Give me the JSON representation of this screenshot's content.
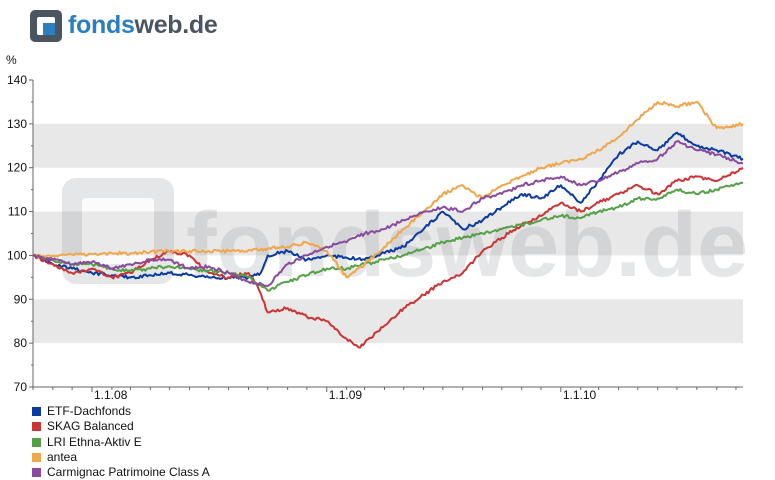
{
  "brand": {
    "part1": "fonds",
    "part2": "web.de",
    "watermark": "fondsweb.de"
  },
  "colors": {
    "band": "#e8e8e8",
    "axis": "#666666"
  },
  "chart_data": {
    "type": "line",
    "ylabel": "%",
    "ylim": [
      70,
      140
    ],
    "yticks": [
      70,
      80,
      90,
      100,
      110,
      120,
      130,
      140
    ],
    "grid": "alternating horizontal bands",
    "xlim": [
      "2007-10-01",
      "2010-10-12"
    ],
    "xticks": [
      {
        "date": "2008-01-01",
        "label": "1.1.08"
      },
      {
        "date": "2009-01-01",
        "label": "1.1.09"
      },
      {
        "date": "2010-01-01",
        "label": "1.1.10"
      }
    ],
    "legend_position": "bottom-left",
    "series": [
      {
        "name": "ETF-Dachfonds",
        "color": "#0b3aa0",
        "points": [
          [
            "2007-10-01",
            100
          ],
          [
            "2007-11-01",
            98
          ],
          [
            "2007-12-01",
            97
          ],
          [
            "2008-01-01",
            96
          ],
          [
            "2008-02-01",
            95.5
          ],
          [
            "2008-03-01",
            95
          ],
          [
            "2008-04-01",
            95.5
          ],
          [
            "2008-05-01",
            96
          ],
          [
            "2008-06-01",
            95.5
          ],
          [
            "2008-07-01",
            95
          ],
          [
            "2008-08-01",
            95
          ],
          [
            "2008-09-01",
            95
          ],
          [
            "2008-09-20",
            96
          ],
          [
            "2008-10-01",
            100
          ],
          [
            "2008-11-01",
            101
          ],
          [
            "2008-12-01",
            99
          ],
          [
            "2009-01-01",
            100
          ],
          [
            "2009-02-01",
            99.5
          ],
          [
            "2009-03-01",
            99
          ],
          [
            "2009-04-01",
            100.5
          ],
          [
            "2009-05-01",
            102
          ],
          [
            "2009-06-01",
            106
          ],
          [
            "2009-07-01",
            110
          ],
          [
            "2009-08-01",
            106
          ],
          [
            "2009-09-01",
            108
          ],
          [
            "2009-10-01",
            111
          ],
          [
            "2009-11-01",
            114
          ],
          [
            "2009-12-01",
            113
          ],
          [
            "2010-01-01",
            116
          ],
          [
            "2010-02-01",
            112
          ],
          [
            "2010-03-01",
            117
          ],
          [
            "2010-04-01",
            123
          ],
          [
            "2010-05-01",
            126
          ],
          [
            "2010-06-01",
            124
          ],
          [
            "2010-07-01",
            128
          ],
          [
            "2010-08-01",
            125
          ],
          [
            "2010-09-01",
            124
          ],
          [
            "2010-10-12",
            122
          ]
        ]
      },
      {
        "name": "SKAG Balanced",
        "color": "#cc3333",
        "points": [
          [
            "2007-10-01",
            100
          ],
          [
            "2007-11-01",
            98
          ],
          [
            "2007-12-01",
            96
          ],
          [
            "2008-01-01",
            97
          ],
          [
            "2008-02-01",
            95
          ],
          [
            "2008-03-01",
            96
          ],
          [
            "2008-04-01",
            99
          ],
          [
            "2008-05-01",
            101
          ],
          [
            "2008-06-01",
            100
          ],
          [
            "2008-07-01",
            96
          ],
          [
            "2008-08-01",
            95
          ],
          [
            "2008-09-01",
            96
          ],
          [
            "2008-09-15",
            93
          ],
          [
            "2008-10-01",
            87
          ],
          [
            "2008-11-01",
            88
          ],
          [
            "2008-12-01",
            86
          ],
          [
            "2009-01-01",
            85
          ],
          [
            "2009-02-01",
            81
          ],
          [
            "2009-02-20",
            79
          ],
          [
            "2009-03-01",
            80
          ],
          [
            "2009-04-01",
            84
          ],
          [
            "2009-05-01",
            88
          ],
          [
            "2009-06-01",
            91
          ],
          [
            "2009-07-01",
            94
          ],
          [
            "2009-08-01",
            96
          ],
          [
            "2009-09-01",
            101
          ],
          [
            "2009-10-01",
            104
          ],
          [
            "2009-11-01",
            107
          ],
          [
            "2009-12-01",
            109
          ],
          [
            "2010-01-01",
            112
          ],
          [
            "2010-02-01",
            110
          ],
          [
            "2010-03-01",
            112
          ],
          [
            "2010-04-01",
            114
          ],
          [
            "2010-05-01",
            116
          ],
          [
            "2010-06-01",
            114
          ],
          [
            "2010-07-01",
            117
          ],
          [
            "2010-08-01",
            118
          ],
          [
            "2010-09-01",
            117
          ],
          [
            "2010-10-12",
            120
          ]
        ]
      },
      {
        "name": "LRI Ethna-Aktiv E",
        "color": "#55a046",
        "points": [
          [
            "2007-10-01",
            100
          ],
          [
            "2007-11-01",
            99
          ],
          [
            "2007-12-01",
            98
          ],
          [
            "2008-01-01",
            98
          ],
          [
            "2008-02-01",
            97
          ],
          [
            "2008-03-01",
            96.5
          ],
          [
            "2008-04-01",
            97
          ],
          [
            "2008-05-01",
            97.5
          ],
          [
            "2008-06-01",
            97
          ],
          [
            "2008-07-01",
            96.5
          ],
          [
            "2008-08-01",
            96
          ],
          [
            "2008-09-01",
            95
          ],
          [
            "2008-10-01",
            92
          ],
          [
            "2008-11-01",
            94
          ],
          [
            "2008-12-01",
            95.5
          ],
          [
            "2009-01-01",
            97
          ],
          [
            "2009-02-01",
            97
          ],
          [
            "2009-03-01",
            98
          ],
          [
            "2009-04-01",
            99
          ],
          [
            "2009-05-01",
            100
          ],
          [
            "2009-06-01",
            101.5
          ],
          [
            "2009-07-01",
            103
          ],
          [
            "2009-08-01",
            104
          ],
          [
            "2009-09-01",
            105
          ],
          [
            "2009-10-01",
            106
          ],
          [
            "2009-11-01",
            107
          ],
          [
            "2009-12-01",
            108
          ],
          [
            "2010-01-01",
            109
          ],
          [
            "2010-02-01",
            108.5
          ],
          [
            "2010-03-01",
            110
          ],
          [
            "2010-04-01",
            111
          ],
          [
            "2010-05-01",
            113
          ],
          [
            "2010-06-01",
            113
          ],
          [
            "2010-07-01",
            115
          ],
          [
            "2010-08-01",
            114
          ],
          [
            "2010-09-01",
            115
          ],
          [
            "2010-10-12",
            116.5
          ]
        ]
      },
      {
        "name": "antea",
        "color": "#f0a64a",
        "points": [
          [
            "2007-10-01",
            100
          ],
          [
            "2007-11-01",
            100
          ],
          [
            "2007-12-01",
            100.2
          ],
          [
            "2008-01-01",
            100.3
          ],
          [
            "2008-02-01",
            100.5
          ],
          [
            "2008-03-01",
            100.5
          ],
          [
            "2008-04-01",
            100.8
          ],
          [
            "2008-05-01",
            101
          ],
          [
            "2008-06-01",
            101
          ],
          [
            "2008-07-01",
            101
          ],
          [
            "2008-08-01",
            101
          ],
          [
            "2008-09-01",
            101.2
          ],
          [
            "2008-10-01",
            101.5
          ],
          [
            "2008-11-01",
            102
          ],
          [
            "2008-12-01",
            103
          ],
          [
            "2009-01-01",
            101
          ],
          [
            "2009-02-01",
            95
          ],
          [
            "2009-03-01",
            98
          ],
          [
            "2009-04-01",
            102
          ],
          [
            "2009-05-01",
            106
          ],
          [
            "2009-06-01",
            110
          ],
          [
            "2009-07-01",
            114
          ],
          [
            "2009-08-01",
            116
          ],
          [
            "2009-09-01",
            113
          ],
          [
            "2009-10-01",
            116
          ],
          [
            "2009-11-01",
            118
          ],
          [
            "2009-12-01",
            120
          ],
          [
            "2010-01-01",
            121
          ],
          [
            "2010-02-01",
            122
          ],
          [
            "2010-03-01",
            124
          ],
          [
            "2010-04-01",
            127
          ],
          [
            "2010-05-01",
            131
          ],
          [
            "2010-06-01",
            135
          ],
          [
            "2010-07-01",
            134
          ],
          [
            "2010-08-01",
            135
          ],
          [
            "2010-09-01",
            129
          ],
          [
            "2010-10-12",
            130
          ]
        ]
      },
      {
        "name": "Carmignac Patrimoine Class A",
        "color": "#8a4a9e",
        "points": [
          [
            "2007-10-01",
            100
          ],
          [
            "2007-11-01",
            99
          ],
          [
            "2007-12-01",
            98
          ],
          [
            "2008-01-01",
            98.5
          ],
          [
            "2008-02-01",
            97
          ],
          [
            "2008-03-01",
            98
          ],
          [
            "2008-04-01",
            99
          ],
          [
            "2008-05-01",
            99
          ],
          [
            "2008-06-01",
            97
          ],
          [
            "2008-07-01",
            97.5
          ],
          [
            "2008-08-01",
            96
          ],
          [
            "2008-09-01",
            94
          ],
          [
            "2008-10-01",
            93
          ],
          [
            "2008-11-01",
            98
          ],
          [
            "2008-12-01",
            100
          ],
          [
            "2009-01-01",
            102
          ],
          [
            "2009-02-01",
            103
          ],
          [
            "2009-03-01",
            105
          ],
          [
            "2009-04-01",
            106
          ],
          [
            "2009-05-01",
            108
          ],
          [
            "2009-06-01",
            110
          ],
          [
            "2009-07-01",
            111
          ],
          [
            "2009-08-01",
            110
          ],
          [
            "2009-09-01",
            113
          ],
          [
            "2009-10-01",
            114
          ],
          [
            "2009-11-01",
            116
          ],
          [
            "2009-12-01",
            117
          ],
          [
            "2010-01-01",
            118
          ],
          [
            "2010-02-01",
            116
          ],
          [
            "2010-03-01",
            117
          ],
          [
            "2010-04-01",
            119
          ],
          [
            "2010-05-01",
            121
          ],
          [
            "2010-06-01",
            122
          ],
          [
            "2010-07-01",
            126
          ],
          [
            "2010-08-01",
            124
          ],
          [
            "2010-09-01",
            123
          ],
          [
            "2010-10-12",
            121
          ]
        ]
      }
    ]
  }
}
